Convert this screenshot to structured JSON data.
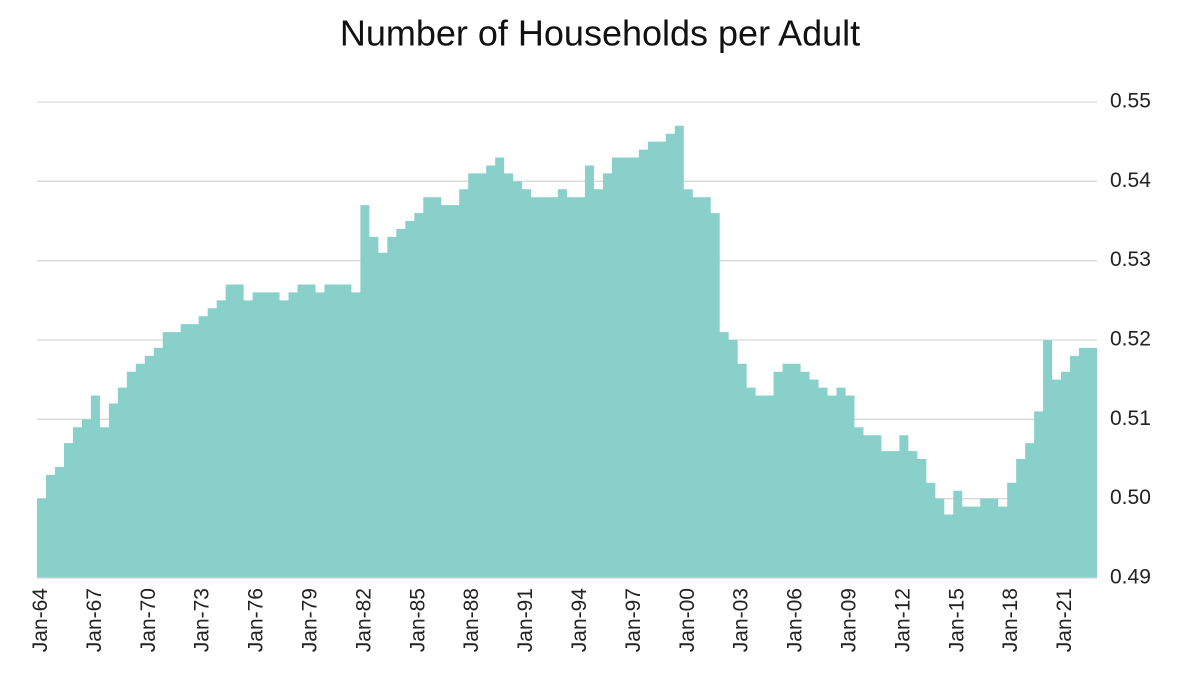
{
  "chart_data": {
    "type": "area",
    "title": "Number of Households per Adult",
    "color": "#88d0c9",
    "grid": true,
    "categories": [
      "Jan-64",
      null,
      null,
      null,
      null,
      null,
      "Jan-67",
      null,
      null,
      null,
      null,
      null,
      "Jan-70",
      null,
      null,
      null,
      null,
      null,
      "Jan-73",
      null,
      null,
      null,
      null,
      null,
      "Jan-76",
      null,
      null,
      null,
      null,
      null,
      "Jan-79",
      null,
      null,
      null,
      null,
      null,
      "Jan-82",
      null,
      null,
      null,
      null,
      null,
      "Jan-85",
      null,
      null,
      null,
      null,
      null,
      "Jan-88",
      null,
      null,
      null,
      null,
      null,
      "Jan-91",
      null,
      null,
      null,
      null,
      null,
      "Jan-94",
      null,
      null,
      null,
      null,
      null,
      "Jan-97",
      null,
      null,
      null,
      null,
      null,
      "Jan-00",
      null,
      null,
      null,
      null,
      null,
      "Jan-03",
      null,
      null,
      null,
      null,
      null,
      "Jan-06",
      null,
      null,
      null,
      null,
      null,
      "Jan-09",
      null,
      null,
      null,
      null,
      null,
      "Jan-12",
      null,
      null,
      null,
      null,
      null,
      "Jan-15",
      null,
      null,
      null,
      null,
      null,
      "Jan-18",
      null,
      null,
      null,
      null,
      null,
      "Jan-21",
      null,
      null,
      null
    ],
    "values": [
      0.5,
      0.503,
      0.504,
      0.507,
      0.509,
      0.51,
      0.513,
      0.509,
      0.512,
      0.514,
      0.516,
      0.517,
      0.518,
      0.519,
      0.521,
      0.521,
      0.522,
      0.522,
      0.523,
      0.524,
      0.525,
      0.527,
      0.527,
      0.525,
      0.526,
      0.526,
      0.526,
      0.525,
      0.526,
      0.527,
      0.527,
      0.526,
      0.527,
      0.527,
      0.527,
      0.526,
      0.537,
      0.533,
      0.531,
      0.533,
      0.534,
      0.535,
      0.536,
      0.538,
      0.538,
      0.537,
      0.537,
      0.539,
      0.541,
      0.541,
      0.542,
      0.543,
      0.541,
      0.54,
      0.539,
      0.538,
      0.538,
      0.538,
      0.539,
      0.538,
      0.538,
      0.542,
      0.539,
      0.541,
      0.543,
      0.543,
      0.543,
      0.544,
      0.545,
      0.545,
      0.546,
      0.547,
      0.539,
      0.538,
      0.538,
      0.536,
      0.521,
      0.52,
      0.517,
      0.514,
      0.513,
      0.513,
      0.516,
      0.517,
      0.517,
      0.516,
      0.515,
      0.514,
      0.513,
      0.514,
      0.513,
      0.509,
      0.508,
      0.508,
      0.506,
      0.506,
      0.508,
      0.506,
      0.505,
      0.502,
      0.5,
      0.498,
      0.501,
      0.499,
      0.499,
      0.5,
      0.5,
      0.499,
      0.502,
      0.505,
      0.507,
      0.511,
      0.52,
      0.515,
      0.516,
      0.518,
      0.519,
      0.519
    ],
    "ylim": [
      0.49,
      0.55
    ],
    "yticks": [
      0.49,
      {
        "value": 0.5,
        "label": "0.50"
      },
      0.51,
      0.52,
      0.53,
      0.54,
      0.55
    ]
  }
}
